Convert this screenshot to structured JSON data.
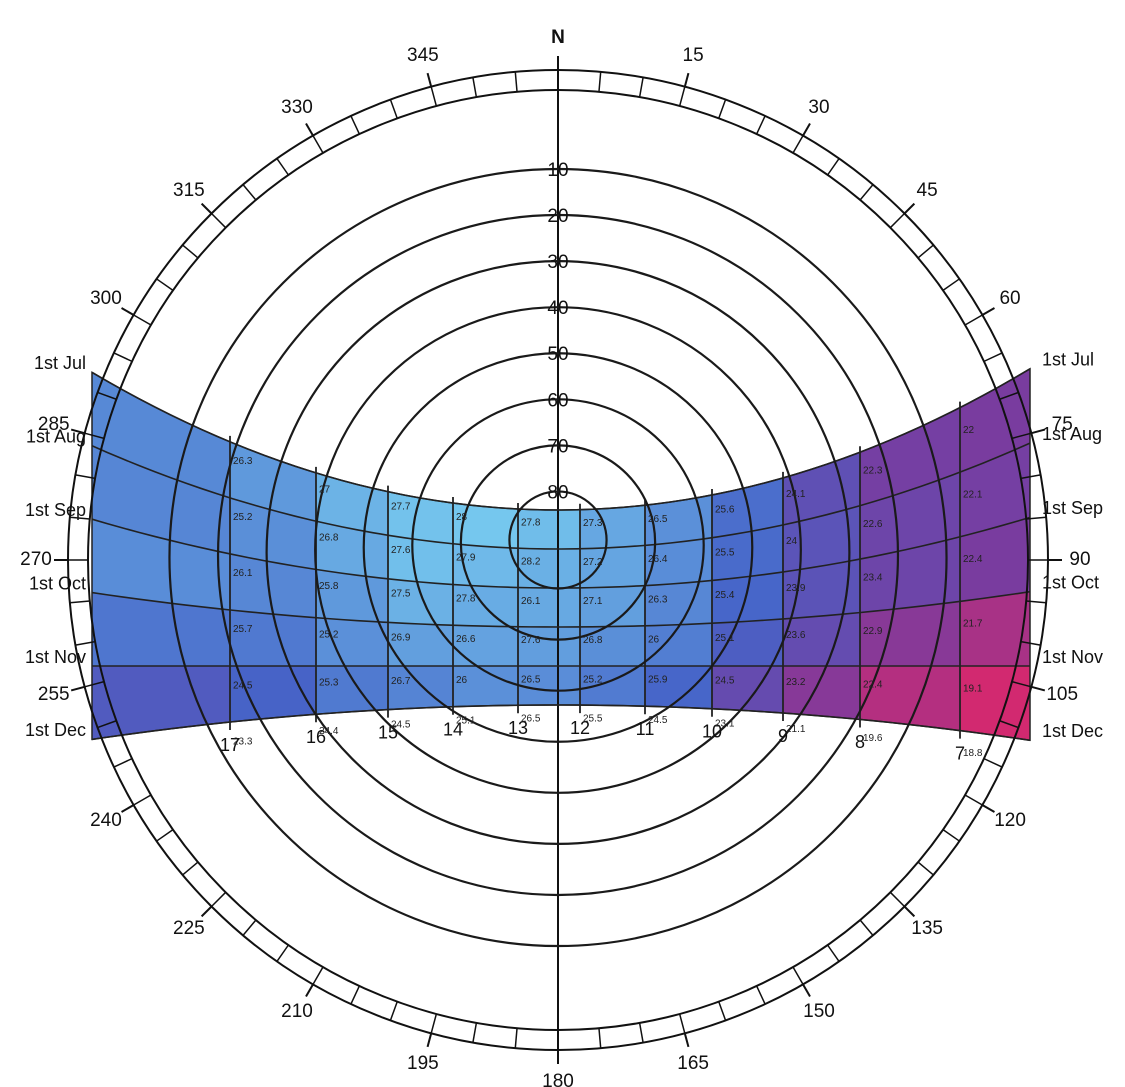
{
  "azimuth_labels": [
    {
      "value": 0,
      "label": "N"
    },
    15,
    30,
    45,
    60,
    75,
    90,
    105,
    120,
    135,
    150,
    165,
    180,
    195,
    210,
    225,
    240,
    255,
    270,
    285,
    300,
    315,
    330,
    345
  ],
  "altitude_rings": [
    10,
    20,
    30,
    40,
    50,
    60,
    70,
    80
  ],
  "months": [
    "1st Jul",
    "1st Aug",
    "1st Sep",
    "1st Oct",
    "1st Nov",
    "1st Dec"
  ],
  "hours": [
    7,
    8,
    9,
    10,
    11,
    12,
    13,
    14,
    15,
    16,
    17
  ],
  "temperatures": [
    [
      22.0,
      22.3,
      24.1,
      25.6,
      26.5,
      27.3,
      27.8,
      28.0,
      27.7,
      27.0,
      26.3
    ],
    [
      22.1,
      22.6,
      24.0,
      25.5,
      26.4,
      27.2,
      28.2,
      27.9,
      27.6,
      26.8,
      25.2
    ],
    [
      22.4,
      23.4,
      23.9,
      25.4,
      26.3,
      27.1,
      26.1,
      27.8,
      27.5,
      25.8,
      26.1
    ],
    [
      21.7,
      22.9,
      23.6,
      25.1,
      26.0,
      26.8,
      27.6,
      26.6,
      26.9,
      25.2,
      25.7
    ],
    [
      19.1,
      22.4,
      23.2,
      24.5,
      25.9,
      25.2,
      26.5,
      26.0,
      26.7,
      25.3,
      24.5
    ],
    [
      18.8,
      19.6,
      21.1,
      23.1,
      24.5,
      25.5,
      26.5,
      25.1,
      24.5,
      24.4,
      23.3
    ]
  ]
}
